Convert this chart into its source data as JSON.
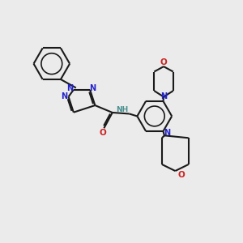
{
  "bg_color": "#ebebeb",
  "bond_color": "#1a1a1a",
  "n_color": "#2222cc",
  "o_color": "#cc2222",
  "nh_color": "#4a9090",
  "lw": 1.5,
  "dbl_sep": 0.055,
  "fig_w": 3.0,
  "fig_h": 3.0,
  "dpi": 100,
  "xlim": [
    0,
    10
  ],
  "ylim": [
    0,
    10
  ]
}
